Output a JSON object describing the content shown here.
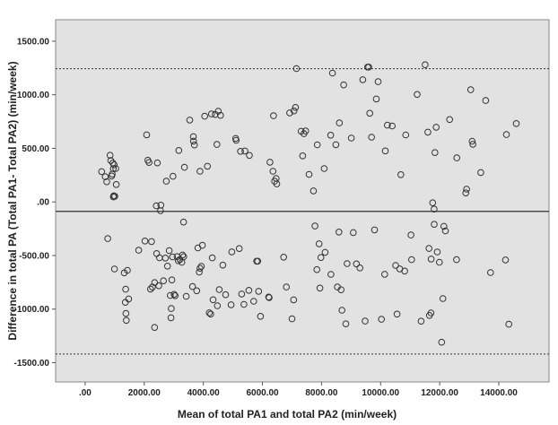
{
  "chart_data": {
    "type": "scatter",
    "xlabel": "Mean of total PA1 and total PA2 (min/week)",
    "ylabel": "Difference in total PA (Total PA1- Total PA2) (min/week)",
    "xlim": [
      -1000,
      15700
    ],
    "ylim": [
      -1680,
      1700
    ],
    "xticks": [
      0,
      2000,
      4000,
      6000,
      8000,
      10000,
      12000,
      14000
    ],
    "xtick_labels": [
      ".00",
      "2000.00",
      "4000.00",
      "6000.00",
      "8000.00",
      "10000.00",
      "12000.00",
      "14000.00"
    ],
    "yticks": [
      -1500,
      -1000,
      -500,
      0,
      500,
      1000,
      1500
    ],
    "ytick_labels": [
      "-1500.00",
      "-1000.00",
      "-500.00",
      ".00",
      "500.00",
      "1000.00",
      "1500.00"
    ],
    "plot_background": "#e2e2e2",
    "marker_color": "#333333",
    "reference_lines": [
      {
        "y": 1243,
        "style": "dotted"
      },
      {
        "y": -88,
        "style": "solid"
      },
      {
        "y": -1420,
        "style": "dotted"
      }
    ],
    "points": [
      [
        558,
        283
      ],
      [
        680,
        235
      ],
      [
        731,
        188
      ],
      [
        764,
        -342
      ],
      [
        843,
        435
      ],
      [
        866,
        386
      ],
      [
        897,
        242
      ],
      [
        915,
        259
      ],
      [
        938,
        363
      ],
      [
        951,
        310
      ],
      [
        956,
        47
      ],
      [
        968,
        57
      ],
      [
        981,
        346
      ],
      [
        992,
        -626
      ],
      [
        1003,
        53
      ],
      [
        1035,
        311
      ],
      [
        1052,
        162
      ],
      [
        1324,
        -662
      ],
      [
        1359,
        -937
      ],
      [
        1372,
        -815
      ],
      [
        1382,
        -1041
      ],
      [
        1392,
        -1105
      ],
      [
        1429,
        -638
      ],
      [
        1471,
        -905
      ],
      [
        1811,
        -451
      ],
      [
        2025,
        -365
      ],
      [
        2081,
        626
      ],
      [
        2122,
        389
      ],
      [
        2162,
        368
      ],
      [
        2211,
        -813
      ],
      [
        2247,
        -370
      ],
      [
        2275,
        -795
      ],
      [
        2348,
        -1171
      ],
      [
        2353,
        -753
      ],
      [
        2408,
        -36
      ],
      [
        2419,
        -482
      ],
      [
        2444,
        364
      ],
      [
        2491,
        -782
      ],
      [
        2517,
        -521
      ],
      [
        2550,
        -82
      ],
      [
        2561,
        -30
      ],
      [
        2650,
        -736
      ],
      [
        2718,
        -524
      ],
      [
        2748,
        193
      ],
      [
        2786,
        -599
      ],
      [
        2845,
        -454
      ],
      [
        2880,
        -873
      ],
      [
        2906,
        -1081
      ],
      [
        2915,
        -995
      ],
      [
        2934,
        -728
      ],
      [
        2955,
        -513
      ],
      [
        2971,
        239
      ],
      [
        3010,
        -863
      ],
      [
        3044,
        -875
      ],
      [
        3110,
        -510
      ],
      [
        3150,
        -549
      ],
      [
        3170,
        480
      ],
      [
        3205,
        -537
      ],
      [
        3272,
        -563
      ],
      [
        3295,
        -495
      ],
      [
        3329,
        -188
      ],
      [
        3337,
        -511
      ],
      [
        3359,
        323
      ],
      [
        3420,
        -881
      ],
      [
        3540,
        764
      ],
      [
        3634,
        -790
      ],
      [
        3661,
        609
      ],
      [
        3666,
        567
      ],
      [
        3698,
        531
      ],
      [
        3775,
        -829
      ],
      [
        3817,
        -429
      ],
      [
        3860,
        -655
      ],
      [
        3884,
        286
      ],
      [
        3887,
        -619
      ],
      [
        3932,
        -601
      ],
      [
        3968,
        -405
      ],
      [
        4047,
        800
      ],
      [
        4137,
        333
      ],
      [
        4200,
        -1035
      ],
      [
        4249,
        -1047
      ],
      [
        4275,
        821
      ],
      [
        4301,
        -522
      ],
      [
        4330,
        -913
      ],
      [
        4401,
        816
      ],
      [
        4458,
        536
      ],
      [
        4475,
        -969
      ],
      [
        4506,
        847
      ],
      [
        4537,
        -818
      ],
      [
        4580,
        807
      ],
      [
        4659,
        -590
      ],
      [
        4754,
        -866
      ],
      [
        4940,
        -960
      ],
      [
        4962,
        -466
      ],
      [
        5095,
        592
      ],
      [
        5113,
        575
      ],
      [
        5214,
        -435
      ],
      [
        5258,
        472
      ],
      [
        5296,
        -859
      ],
      [
        5374,
        -956
      ],
      [
        5407,
        475
      ],
      [
        5541,
        -825
      ],
      [
        5560,
        434
      ],
      [
        5705,
        -927
      ],
      [
        5806,
        -553
      ],
      [
        5842,
        -553
      ],
      [
        5870,
        -834
      ],
      [
        5936,
        -1068
      ],
      [
        6210,
        -888
      ],
      [
        6228,
        -893
      ],
      [
        6255,
        371
      ],
      [
        6356,
        286
      ],
      [
        6374,
        804
      ],
      [
        6411,
        193
      ],
      [
        6464,
        219
      ],
      [
        6484,
        168
      ],
      [
        6718,
        -515
      ],
      [
        6810,
        -794
      ],
      [
        6921,
        831
      ],
      [
        7001,
        -1091
      ],
      [
        7054,
        -914
      ],
      [
        7069,
        849
      ],
      [
        7119,
        882
      ],
      [
        7151,
        1244
      ],
      [
        7311,
        659
      ],
      [
        7362,
        430
      ],
      [
        7405,
        637
      ],
      [
        7461,
        662
      ],
      [
        7579,
        257
      ],
      [
        7728,
        103
      ],
      [
        7778,
        -225
      ],
      [
        7843,
        -632
      ],
      [
        7858,
        533
      ],
      [
        7919,
        -391
      ],
      [
        7945,
        -804
      ],
      [
        7979,
        -519
      ],
      [
        8091,
        311
      ],
      [
        8122,
        -470
      ],
      [
        8308,
        622
      ],
      [
        8319,
        -676
      ],
      [
        8370,
        1202
      ],
      [
        8485,
        534
      ],
      [
        8538,
        -794
      ],
      [
        8590,
        -281
      ],
      [
        8605,
        737
      ],
      [
        8663,
        -820
      ],
      [
        8693,
        -1011
      ],
      [
        8751,
        1092
      ],
      [
        8824,
        -1138
      ],
      [
        8865,
        -576
      ],
      [
        9008,
        596
      ],
      [
        9074,
        -286
      ],
      [
        9180,
        -578
      ],
      [
        9299,
        -616
      ],
      [
        9397,
        1140
      ],
      [
        9475,
        -1112
      ],
      [
        9559,
        1258
      ],
      [
        9597,
        1258
      ],
      [
        9633,
        827
      ],
      [
        9695,
        604
      ],
      [
        9793,
        -261
      ],
      [
        9855,
        960
      ],
      [
        9915,
        1122
      ],
      [
        10029,
        -1095
      ],
      [
        10137,
        -675
      ],
      [
        10158,
        476
      ],
      [
        10228,
        716
      ],
      [
        10391,
        709
      ],
      [
        10508,
        -592
      ],
      [
        10557,
        -1047
      ],
      [
        10647,
        -625
      ],
      [
        10683,
        254
      ],
      [
        10813,
        -645
      ],
      [
        10850,
        625
      ],
      [
        11027,
        -309
      ],
      [
        11048,
        -539
      ],
      [
        11237,
        1003
      ],
      [
        11371,
        -1113
      ],
      [
        11506,
        1280
      ],
      [
        11597,
        651
      ],
      [
        11637,
        -434
      ],
      [
        11653,
        -1059
      ],
      [
        11703,
        -1036
      ],
      [
        11711,
        -533
      ],
      [
        11763,
        -8
      ],
      [
        11811,
        -67
      ],
      [
        11814,
        -209
      ],
      [
        11838,
        460
      ],
      [
        11881,
        697
      ],
      [
        11918,
        -467
      ],
      [
        11990,
        -563
      ],
      [
        12065,
        -1309
      ],
      [
        12109,
        -902
      ],
      [
        12140,
        -228
      ],
      [
        12193,
        -270
      ],
      [
        12336,
        769
      ],
      [
        12569,
        -539
      ],
      [
        12580,
        411
      ],
      [
        12881,
        84
      ],
      [
        12911,
        119
      ],
      [
        13050,
        1047
      ],
      [
        13097,
        566
      ],
      [
        13121,
        538
      ],
      [
        13388,
        274
      ],
      [
        13557,
        946
      ],
      [
        13720,
        -659
      ],
      [
        14226,
        -541
      ],
      [
        14257,
        628
      ],
      [
        14340,
        -1141
      ],
      [
        14591,
        731
      ]
    ]
  }
}
